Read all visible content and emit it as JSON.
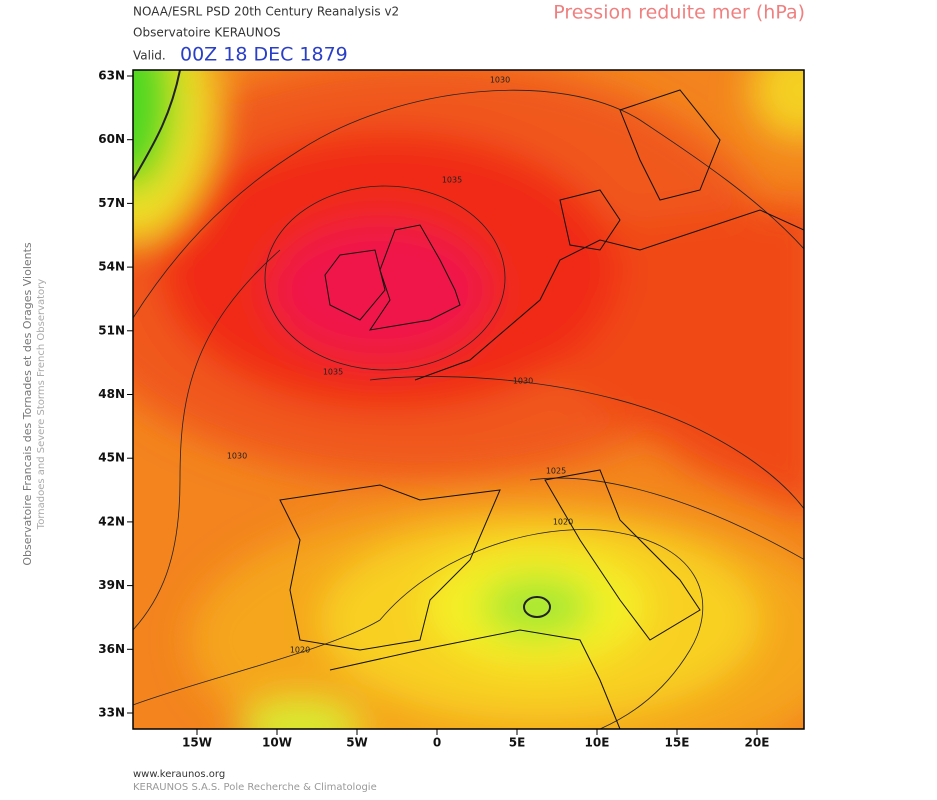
{
  "header": {
    "source": "NOAA/ESRL PSD 20th Century Reanalysis v2",
    "org": "Observatoire KERAUNOS",
    "valid_label": "Valid.",
    "valid_time": "00Z 18 DEC 1879",
    "field": "Pression reduite mer (hPa)"
  },
  "side": {
    "line1": "Observatoire Francais des Tornades et des Orages Violents",
    "line2": "Tornadoes and Severe Storms French Observatory"
  },
  "map": {
    "lat_labels": [
      "63N",
      "60N",
      "57N",
      "54N",
      "51N",
      "48N",
      "45N",
      "42N",
      "39N",
      "36N",
      "33N"
    ],
    "lon_labels": [
      "15W",
      "10W",
      "5W",
      "0",
      "5E",
      "10E",
      "15E",
      "20E"
    ],
    "contour_labels": [
      1030,
      1035,
      1035,
      1030,
      1030,
      1025,
      1020,
      1020
    ]
  },
  "footer": {
    "url": "www.keraunos.org",
    "company": "KERAUNOS S.A.S. Pole Recherche & Climatologie"
  }
}
